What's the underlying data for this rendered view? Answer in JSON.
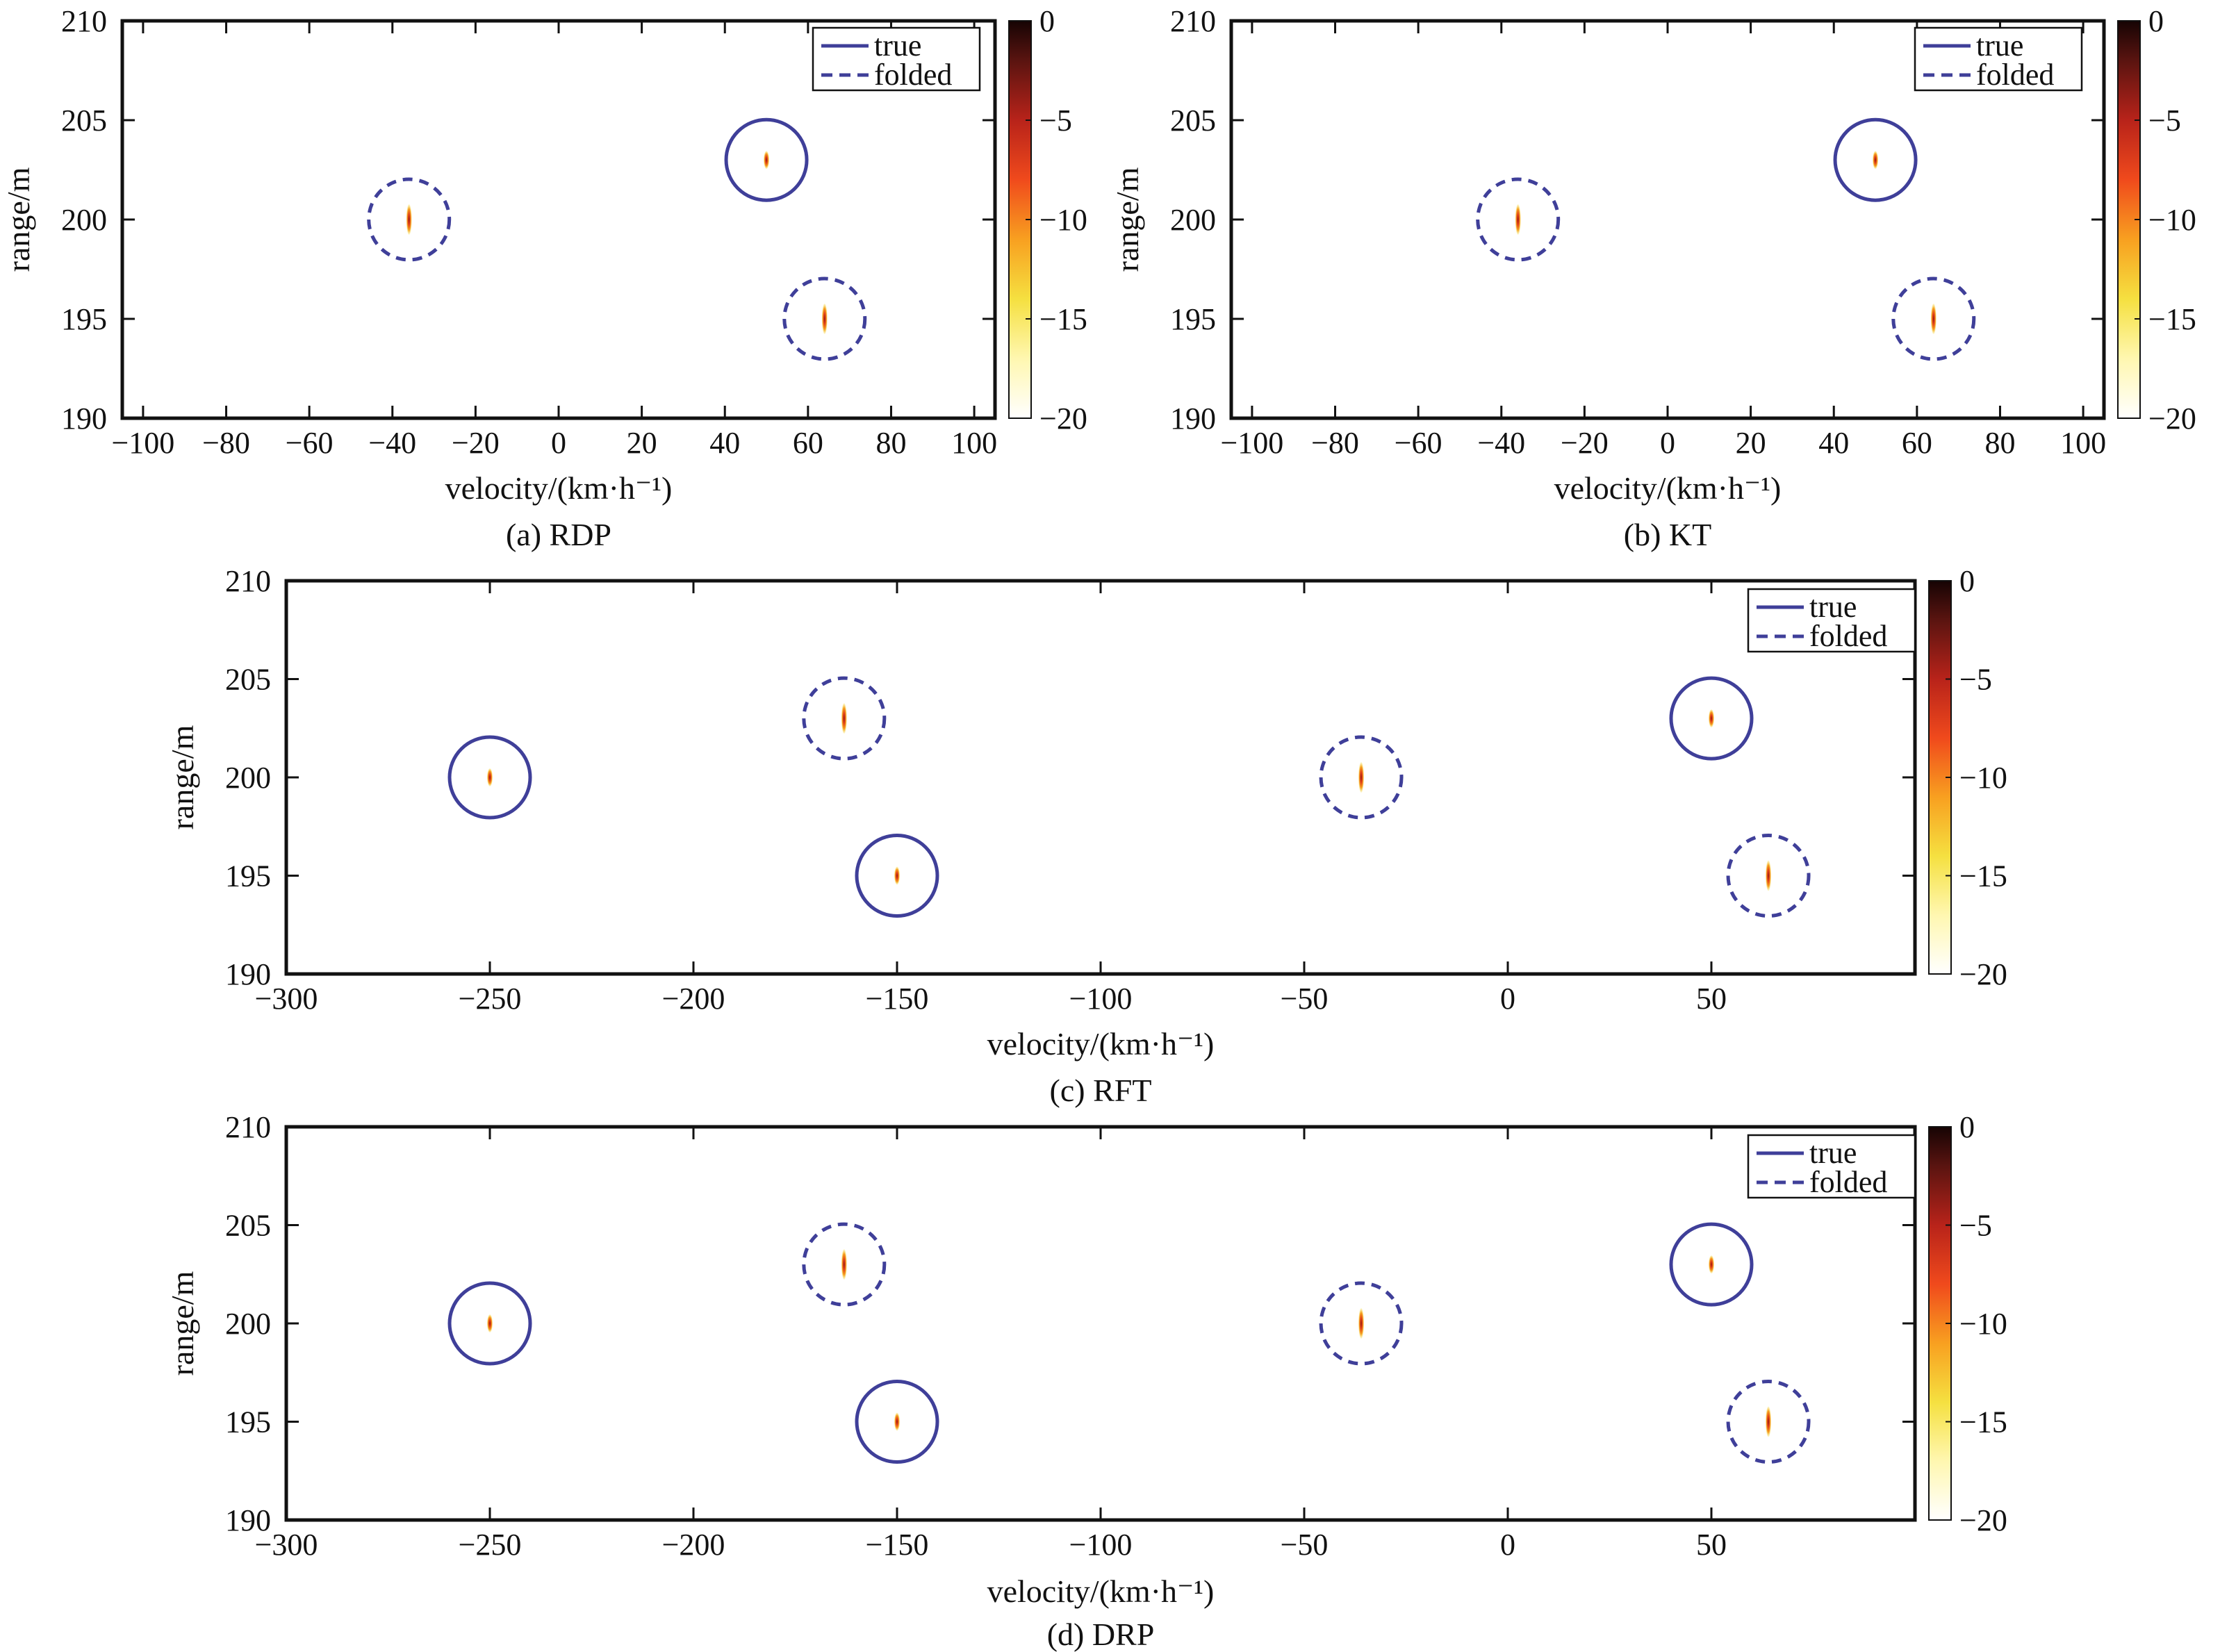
{
  "figure": {
    "title": ""
  },
  "colors": {
    "true_circle": "#3f3f99",
    "folded_circle": "#3f3f99",
    "axis": "#111111",
    "colormap": [
      "#ffffff",
      "#fff7b0",
      "#f5e040",
      "#f8a020",
      "#f04a1c",
      "#b8231a",
      "#5a1410",
      "#160404"
    ]
  },
  "chart_data": [
    {
      "type": "heatmap",
      "caption": "(a) RDP",
      "xlabel": "velocity/(km·h⁻¹)",
      "ylabel": "range/m",
      "xlim": [
        -105,
        105
      ],
      "ylim": [
        190,
        210
      ],
      "xticks": [
        -100,
        -80,
        -60,
        -40,
        -20,
        0,
        20,
        40,
        60,
        80,
        100
      ],
      "yticks": [
        190,
        195,
        200,
        205,
        210
      ],
      "legend": {
        "position": "top-right",
        "entries": [
          "true",
          "folded"
        ]
      },
      "colorbar": {
        "range": [
          -20,
          0
        ],
        "ticks": [
          0,
          -5,
          -10,
          -15,
          -20
        ]
      },
      "grid": false,
      "targets": [
        {
          "velocity": -36,
          "range": 200,
          "circle": "folded"
        },
        {
          "velocity": 50,
          "range": 203,
          "circle": "true"
        },
        {
          "velocity": 64,
          "range": 195,
          "circle": "folded"
        }
      ]
    },
    {
      "type": "heatmap",
      "caption": "(b) KT",
      "xlabel": "velocity/(km·h⁻¹)",
      "ylabel": "range/m",
      "xlim": [
        -105,
        105
      ],
      "ylim": [
        190,
        210
      ],
      "xticks": [
        -100,
        -80,
        -60,
        -40,
        -20,
        0,
        20,
        40,
        60,
        80,
        100
      ],
      "yticks": [
        190,
        195,
        200,
        205,
        210
      ],
      "legend": {
        "position": "top-right",
        "entries": [
          "true",
          "folded"
        ]
      },
      "colorbar": {
        "range": [
          -20,
          0
        ],
        "ticks": [
          0,
          -5,
          -10,
          -15,
          -20
        ]
      },
      "grid": false,
      "targets": [
        {
          "velocity": -36,
          "range": 200,
          "circle": "folded"
        },
        {
          "velocity": 50,
          "range": 203,
          "circle": "true"
        },
        {
          "velocity": 64,
          "range": 195,
          "circle": "folded"
        }
      ]
    },
    {
      "type": "heatmap",
      "caption": "(c) RFT",
      "xlabel": "velocity/(km·h⁻¹)",
      "ylabel": "range/m",
      "xlim": [
        -300,
        100
      ],
      "ylim": [
        190,
        210
      ],
      "xticks": [
        -300,
        -250,
        -200,
        -150,
        -100,
        -50,
        0,
        50
      ],
      "yticks": [
        190,
        195,
        200,
        205,
        210
      ],
      "legend": {
        "position": "top-right",
        "entries": [
          "true",
          "folded"
        ]
      },
      "colorbar": {
        "range": [
          -20,
          0
        ],
        "ticks": [
          0,
          -5,
          -10,
          -15,
          -20
        ]
      },
      "grid": false,
      "targets": [
        {
          "velocity": -250,
          "range": 200,
          "circle": "true"
        },
        {
          "velocity": -163,
          "range": 203,
          "circle": "folded"
        },
        {
          "velocity": -150,
          "range": 195,
          "circle": "true"
        },
        {
          "velocity": -36,
          "range": 200,
          "circle": "folded"
        },
        {
          "velocity": 50,
          "range": 203,
          "circle": "true"
        },
        {
          "velocity": 64,
          "range": 195,
          "circle": "folded"
        }
      ]
    },
    {
      "type": "heatmap",
      "caption": "(d) DRP",
      "xlabel": "velocity/(km·h⁻¹)",
      "ylabel": "range/m",
      "xlim": [
        -300,
        100
      ],
      "ylim": [
        190,
        210
      ],
      "xticks": [
        -300,
        -250,
        -200,
        -150,
        -100,
        -50,
        0,
        50
      ],
      "yticks": [
        190,
        195,
        200,
        205,
        210
      ],
      "legend": {
        "position": "top-right",
        "entries": [
          "true",
          "folded"
        ]
      },
      "colorbar": {
        "range": [
          -20,
          0
        ],
        "ticks": [
          0,
          -5,
          -10,
          -15,
          -20
        ]
      },
      "grid": false,
      "targets": [
        {
          "velocity": -250,
          "range": 200,
          "circle": "true"
        },
        {
          "velocity": -163,
          "range": 203,
          "circle": "folded"
        },
        {
          "velocity": -150,
          "range": 195,
          "circle": "true"
        },
        {
          "velocity": -36,
          "range": 200,
          "circle": "folded"
        },
        {
          "velocity": 50,
          "range": 203,
          "circle": "true"
        },
        {
          "velocity": 64,
          "range": 195,
          "circle": "folded"
        }
      ]
    }
  ]
}
